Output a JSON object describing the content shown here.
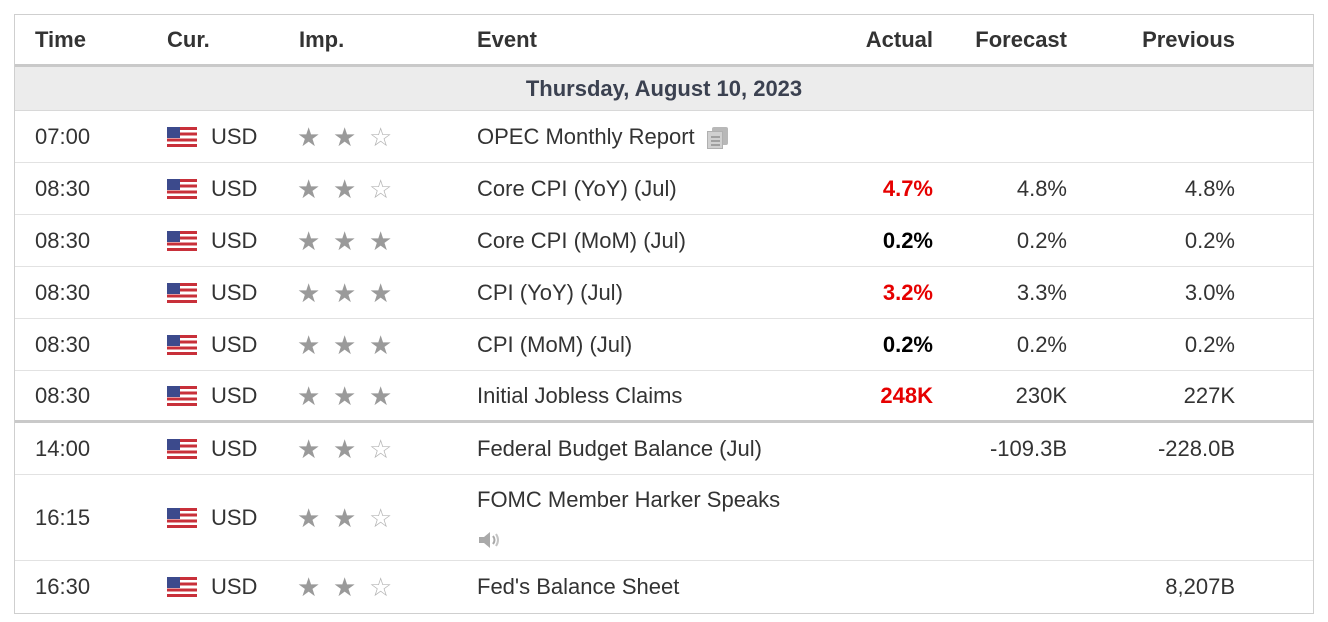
{
  "header": {
    "time": "Time",
    "currency": "Cur.",
    "importance": "Imp.",
    "event": "Event",
    "actual": "Actual",
    "forecast": "Forecast",
    "previous": "Previous"
  },
  "date_band": "Thursday, August 10, 2023",
  "colors": {
    "negative": "#e60000",
    "neutral": "#000000",
    "star": "#9a9a9a"
  },
  "events": [
    {
      "time": "07:00",
      "currency": "USD",
      "importance": 2,
      "event": "OPEC Monthly Report",
      "actual": "",
      "actual_color": "",
      "forecast": "",
      "previous": "",
      "icon": "document-icon"
    },
    {
      "time": "08:30",
      "currency": "USD",
      "importance": 2,
      "event": "Core CPI (YoY) (Jul)",
      "actual": "4.7%",
      "actual_color": "red",
      "forecast": "4.8%",
      "previous": "4.8%"
    },
    {
      "time": "08:30",
      "currency": "USD",
      "importance": 3,
      "event": "Core CPI (MoM) (Jul)",
      "actual": "0.2%",
      "actual_color": "black",
      "forecast": "0.2%",
      "previous": "0.2%"
    },
    {
      "time": "08:30",
      "currency": "USD",
      "importance": 3,
      "event": "CPI (YoY) (Jul)",
      "actual": "3.2%",
      "actual_color": "red",
      "forecast": "3.3%",
      "previous": "3.0%"
    },
    {
      "time": "08:30",
      "currency": "USD",
      "importance": 3,
      "event": "CPI (MoM) (Jul)",
      "actual": "0.2%",
      "actual_color": "black",
      "forecast": "0.2%",
      "previous": "0.2%"
    },
    {
      "time": "08:30",
      "currency": "USD",
      "importance": 3,
      "event": "Initial Jobless Claims",
      "actual": "248K",
      "actual_color": "red",
      "forecast": "230K",
      "previous": "227K"
    },
    {
      "time": "14:00",
      "currency": "USD",
      "importance": 2,
      "event": "Federal Budget Balance (Jul)",
      "actual": "",
      "actual_color": "",
      "forecast": "-109.3B",
      "previous": "-228.0B"
    },
    {
      "time": "16:15",
      "currency": "USD",
      "importance": 2,
      "event": "FOMC Member Harker Speaks",
      "actual": "",
      "actual_color": "",
      "forecast": "",
      "previous": "",
      "icon": "speaker-icon"
    },
    {
      "time": "16:30",
      "currency": "USD",
      "importance": 2,
      "event": "Fed's Balance Sheet",
      "actual": "",
      "actual_color": "",
      "forecast": "",
      "previous": "8,207B"
    }
  ]
}
